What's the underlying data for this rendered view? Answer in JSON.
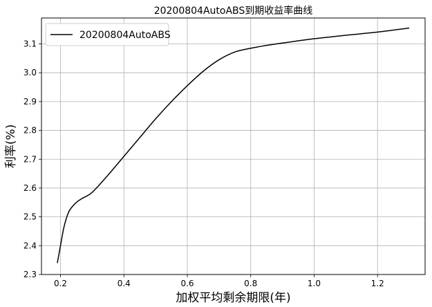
{
  "chart_data": {
    "type": "line",
    "title": "20200804AutoABS到期收益率曲线",
    "xlabel": "加权平均剩余期限(年)",
    "ylabel": "利率(%)",
    "xlim": [
      0.14,
      1.35
    ],
    "ylim": [
      2.3,
      3.19
    ],
    "xticks": [
      0.2,
      0.4,
      0.6,
      0.8,
      1.0,
      1.2
    ],
    "xtick_labels": [
      "0.2",
      "0.4",
      "0.6",
      "0.8",
      "1.0",
      "1.2"
    ],
    "yticks": [
      2.3,
      2.4,
      2.5,
      2.6,
      2.7,
      2.8,
      2.9,
      3.0,
      3.1
    ],
    "ytick_labels": [
      "2.3",
      "2.4",
      "2.5",
      "2.6",
      "2.7",
      "2.8",
      "2.9",
      "3.0",
      "3.1"
    ],
    "grid": true,
    "legend_position": "top-left",
    "series": [
      {
        "name": "20200804AutoABS",
        "color": "#000000",
        "x": [
          0.19,
          0.2,
          0.21,
          0.22,
          0.23,
          0.25,
          0.27,
          0.3,
          0.35,
          0.4,
          0.45,
          0.5,
          0.55,
          0.6,
          0.65,
          0.7,
          0.75,
          0.8,
          0.85,
          0.9,
          1.0,
          1.1,
          1.2,
          1.3
        ],
        "y": [
          2.34,
          2.4,
          2.46,
          2.5,
          2.525,
          2.55,
          2.565,
          2.585,
          2.645,
          2.71,
          2.775,
          2.84,
          2.9,
          2.955,
          3.005,
          3.045,
          3.072,
          3.085,
          3.095,
          3.103,
          3.118,
          3.13,
          3.141,
          3.155
        ]
      }
    ]
  }
}
